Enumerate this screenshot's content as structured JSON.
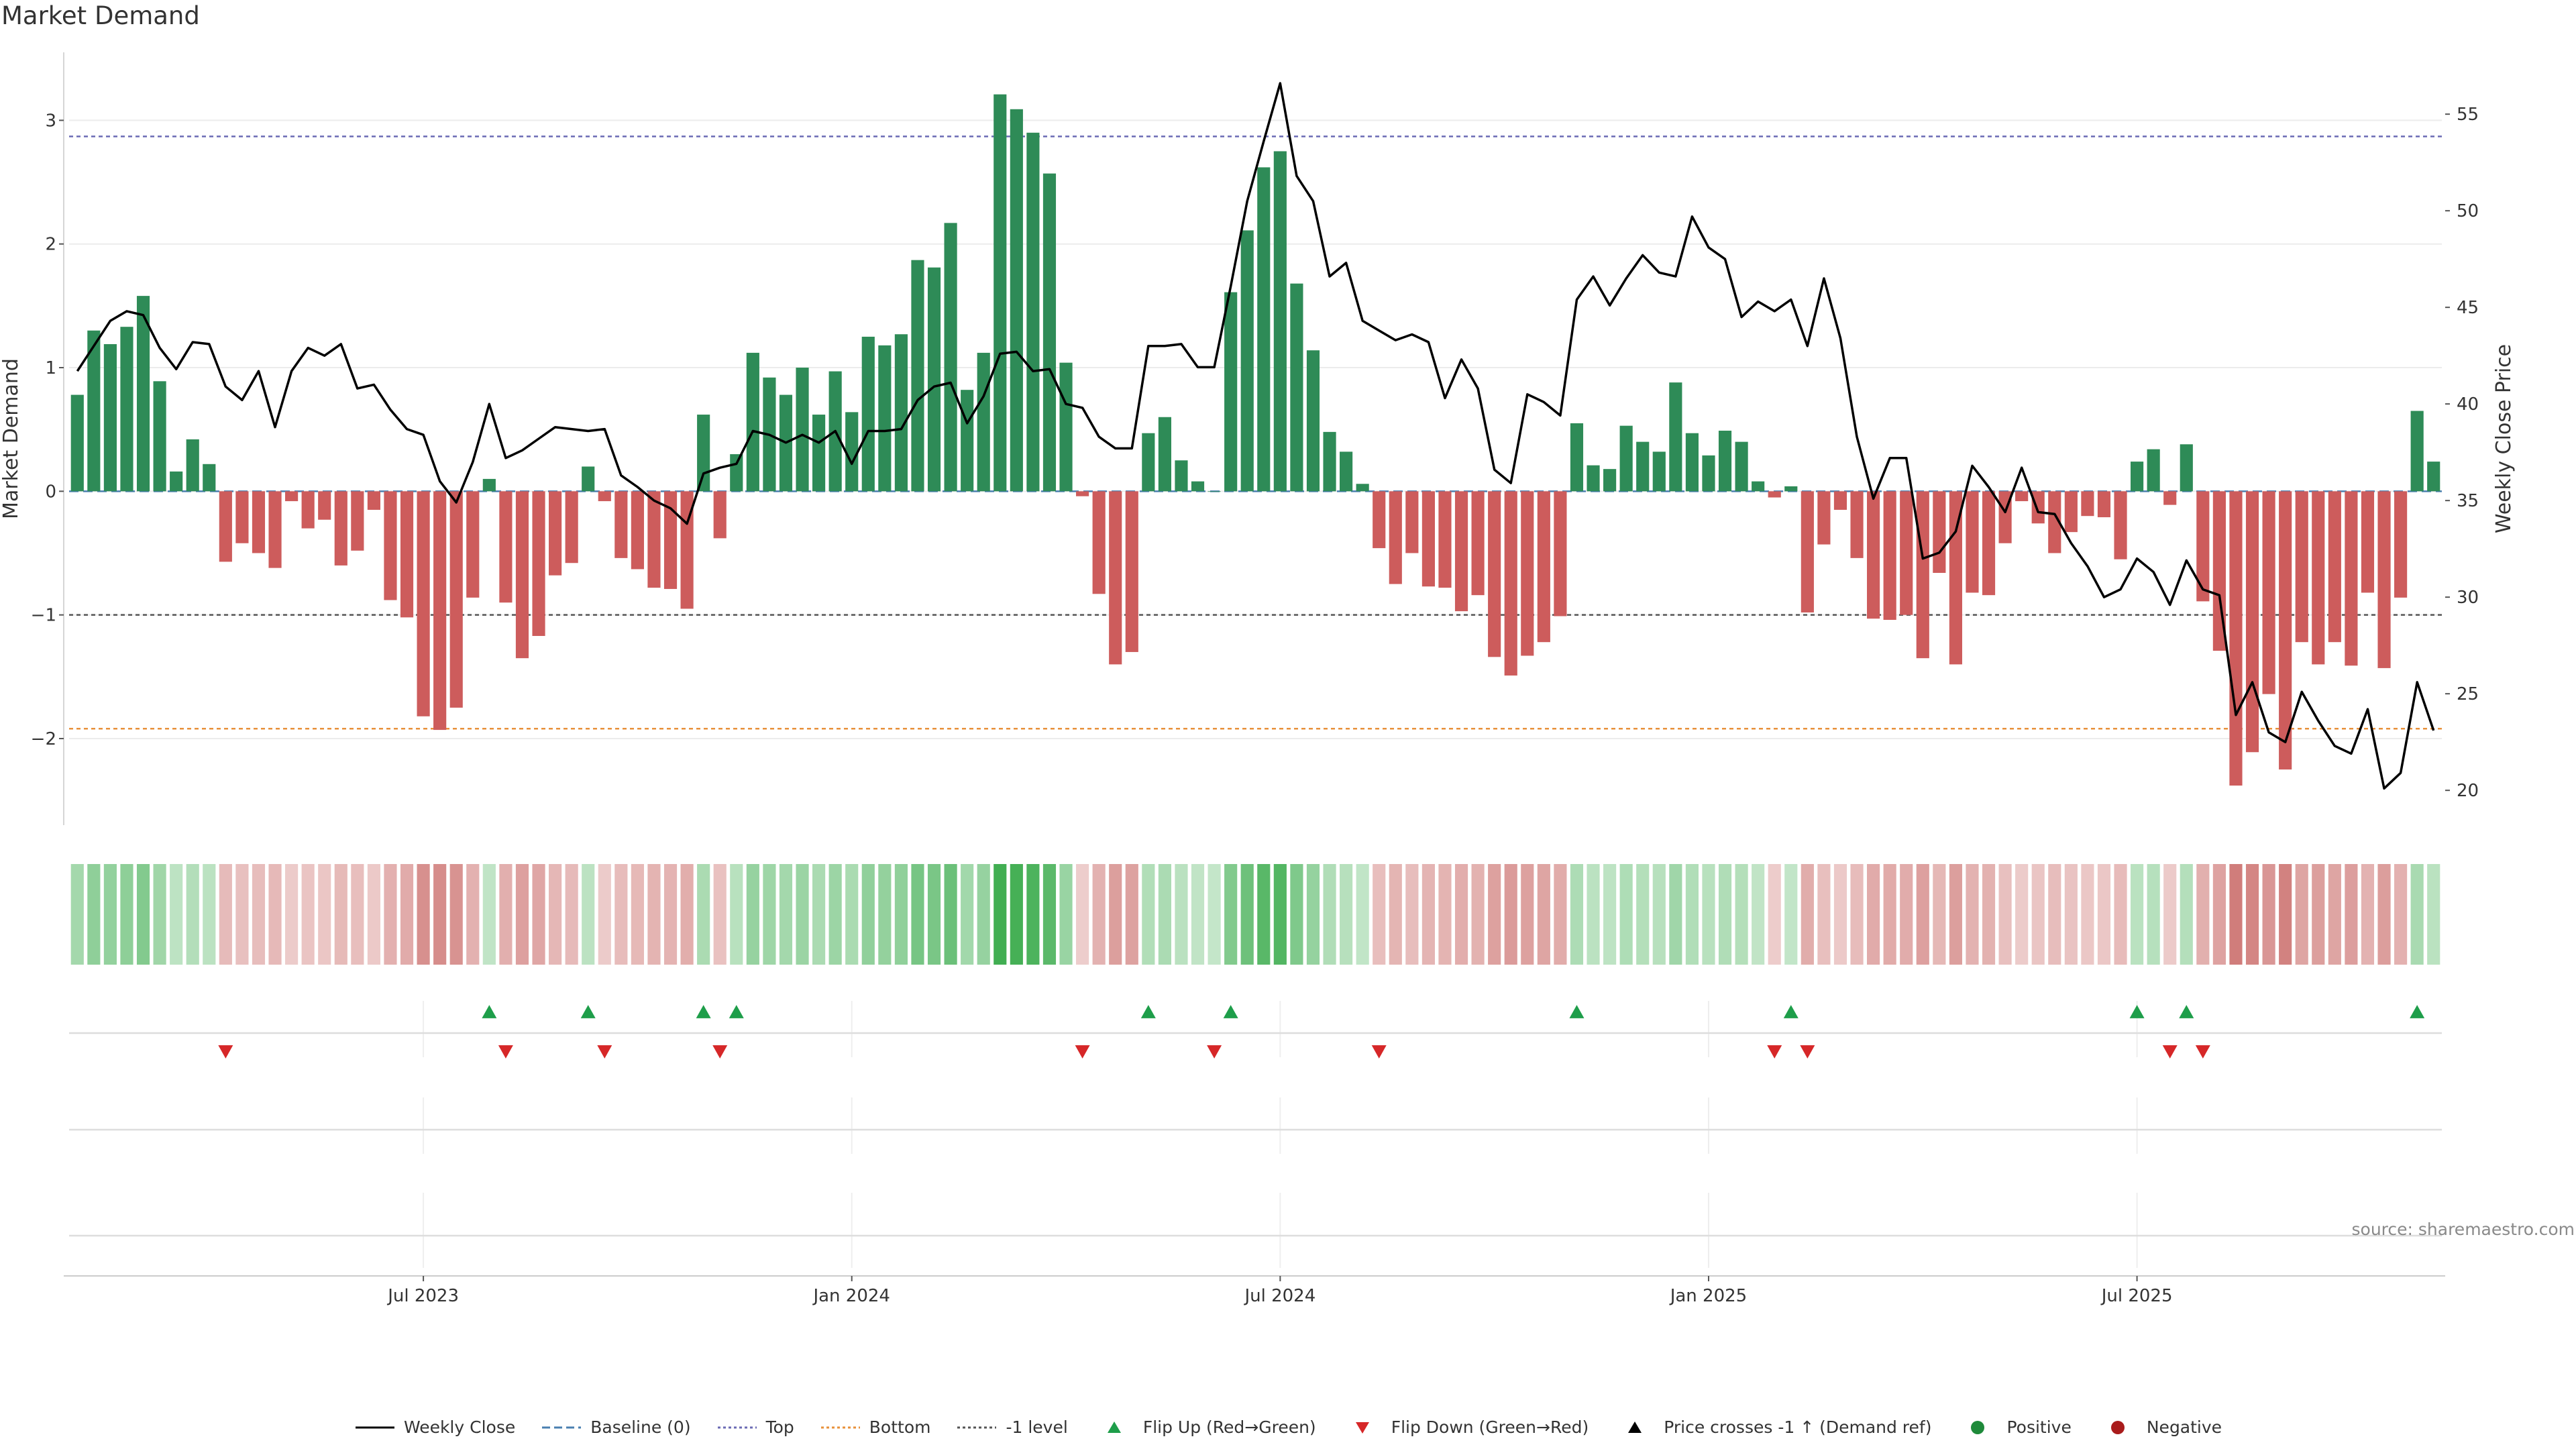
{
  "title": "Market Demand",
  "source": "source: sharemaestro.com",
  "colors": {
    "positive_bar": "#2e8b57",
    "negative_bar": "#cd5c5c",
    "price_line": "#000000",
    "top_line": "#6b6bb5",
    "bottom_line": "#e8913b",
    "minus_one_line": "#555555",
    "flip_up": "#1e9e4a",
    "flip_down": "#d62728",
    "positive_dot": "#1e8a3a",
    "negative_dot": "#a91c1c"
  },
  "chart_data": {
    "type": "bar",
    "left_axis": {
      "label": "Market Demand",
      "ylim": [
        -2.7,
        3.55
      ],
      "ticks": [
        -2,
        -1,
        0,
        1,
        2,
        3
      ]
    },
    "right_axis": {
      "label": "Weekly Close Price",
      "ylim": [
        18.2,
        58.2
      ],
      "ticks": [
        20,
        25,
        30,
        35,
        40,
        45,
        50,
        55
      ]
    },
    "x_axis": {
      "ticks": [
        "Jul 2023",
        "Jan 2024",
        "Jul 2024",
        "Jan 2025",
        "Jul 2025"
      ],
      "tick_positions": [
        21,
        47,
        73,
        99,
        125
      ]
    },
    "levels": {
      "top": 2.87,
      "bottom": -1.92,
      "minus_one": -1.0
    },
    "grid": true,
    "series": [
      {
        "name": "Market Demand",
        "values": [
          0.78,
          1.3,
          1.19,
          1.33,
          1.58,
          0.89,
          0.16,
          0.42,
          0.22,
          -0.57,
          -0.42,
          -0.5,
          -0.62,
          -0.08,
          -0.3,
          -0.23,
          -0.6,
          -0.48,
          -0.15,
          -0.88,
          -1.02,
          -1.82,
          -1.93,
          -1.75,
          -0.86,
          0.1,
          -0.9,
          -1.35,
          -1.17,
          -0.68,
          -0.58,
          0.2,
          -0.08,
          -0.54,
          -0.63,
          -0.78,
          -0.79,
          -0.95,
          0.62,
          -0.38,
          0.3,
          1.12,
          0.92,
          0.78,
          1.0,
          0.62,
          0.97,
          0.64,
          1.25,
          1.18,
          1.27,
          1.87,
          1.81,
          2.17,
          0.82,
          1.12,
          3.21,
          3.09,
          2.9,
          2.57,
          1.04,
          -0.04,
          -0.83,
          -1.4,
          -1.3,
          0.47,
          0.6,
          0.25,
          0.08,
          0.0,
          1.61,
          2.11,
          2.62,
          2.75,
          1.68,
          1.14,
          0.48,
          0.32,
          0.06,
          -0.46,
          -0.75,
          -0.5,
          -0.77,
          -0.78,
          -0.97,
          -0.84,
          -1.34,
          -1.49,
          -1.33,
          -1.22,
          -1.01,
          0.55,
          0.21,
          0.18,
          0.53,
          0.4,
          0.32,
          0.88,
          0.47,
          0.29,
          0.49,
          0.4,
          0.08,
          -0.05,
          0.04,
          -0.98,
          -0.43,
          -0.15,
          -0.54,
          -1.03,
          -1.04,
          -1.0,
          -1.35,
          -0.66,
          -1.4,
          -0.82,
          -0.84,
          -0.42,
          -0.08,
          -0.26,
          -0.5,
          -0.33,
          -0.2,
          -0.21,
          -0.55,
          0.24,
          0.34,
          -0.11,
          0.38,
          -0.89,
          -1.29,
          -2.38,
          -2.11,
          -1.64,
          -2.25,
          -1.22,
          -1.4,
          -1.22,
          -1.41,
          -0.82,
          -1.43,
          -0.86,
          0.65,
          0.24
        ]
      },
      {
        "name": "Weekly Close",
        "values": [
          41.7,
          43.0,
          44.3,
          44.8,
          44.6,
          42.9,
          41.8,
          43.2,
          43.1,
          40.9,
          40.2,
          41.7,
          38.8,
          41.7,
          42.9,
          42.5,
          43.1,
          40.8,
          41.0,
          39.7,
          38.7,
          38.4,
          36.0,
          34.9,
          37.0,
          40.0,
          37.2,
          37.6,
          38.2,
          38.8,
          38.7,
          38.6,
          38.7,
          36.3,
          35.7,
          35.0,
          34.6,
          33.8,
          36.4,
          36.7,
          36.9,
          38.6,
          38.4,
          38.0,
          38.4,
          38.0,
          38.6,
          36.9,
          38.6,
          38.6,
          38.7,
          40.2,
          40.9,
          41.1,
          39.0,
          40.4,
          42.6,
          42.7,
          41.7,
          41.8,
          40.0,
          39.8,
          38.3,
          37.7,
          37.7,
          43.0,
          43.0,
          43.1,
          41.9,
          41.9,
          46.1,
          50.5,
          53.6,
          56.6,
          51.8,
          50.5,
          46.6,
          47.3,
          44.3,
          43.8,
          43.3,
          43.6,
          43.2,
          40.3,
          42.3,
          40.8,
          36.6,
          35.9,
          40.5,
          40.1,
          39.4,
          45.4,
          46.6,
          45.1,
          46.5,
          47.7,
          46.8,
          46.6,
          49.7,
          48.1,
          47.5,
          44.5,
          45.3,
          44.8,
          45.4,
          43.0,
          46.5,
          43.4,
          38.3,
          35.1,
          37.2,
          37.2,
          32.0,
          32.3,
          33.4,
          36.8,
          35.7,
          34.4,
          36.7,
          34.4,
          34.3,
          32.8,
          31.6,
          30.0,
          30.4,
          32.0,
          31.3,
          29.6,
          31.9,
          30.4,
          30.1,
          23.9,
          25.6,
          23.0,
          22.5,
          25.1,
          23.6,
          22.3,
          21.9,
          24.2,
          20.1,
          20.9,
          25.6,
          23.1
        ]
      }
    ],
    "flip_up_index": [
      25,
      31,
      38,
      40,
      65,
      70,
      91,
      104,
      125,
      128,
      142
    ],
    "flip_down_index": [
      9,
      26,
      32,
      39,
      61,
      69,
      79,
      103,
      105,
      127,
      129
    ]
  },
  "legend": [
    {
      "key": "weekly-close",
      "label": "Weekly Close",
      "symbol": "line-solid",
      "color": "#000000"
    },
    {
      "key": "baseline",
      "label": "Baseline (0)",
      "symbol": "line-dashed",
      "color": "#4a7fb0"
    },
    {
      "key": "top",
      "label": "Top",
      "symbol": "line-dotted",
      "color": "#6b6bb5"
    },
    {
      "key": "bottom",
      "label": "Bottom",
      "symbol": "line-dotted",
      "color": "#e8913b"
    },
    {
      "key": "minus-one-level",
      "label": "-1 level",
      "symbol": "line-dotted",
      "color": "#555555"
    },
    {
      "key": "flip-up",
      "label": "Flip Up (Red→Green)",
      "symbol": "triangle-up",
      "color": "#1e9e4a"
    },
    {
      "key": "flip-down",
      "label": "Flip Down (Green→Red)",
      "symbol": "triangle-down",
      "color": "#d62728"
    },
    {
      "key": "price-crosses",
      "label": "Price crosses -1 ↑ (Demand ref)",
      "symbol": "triangle-up",
      "color": "#000000"
    },
    {
      "key": "positive",
      "label": "Positive",
      "symbol": "dot",
      "color": "#1e8a3a"
    },
    {
      "key": "negative",
      "label": "Negative",
      "symbol": "dot",
      "color": "#a91c1c"
    }
  ]
}
